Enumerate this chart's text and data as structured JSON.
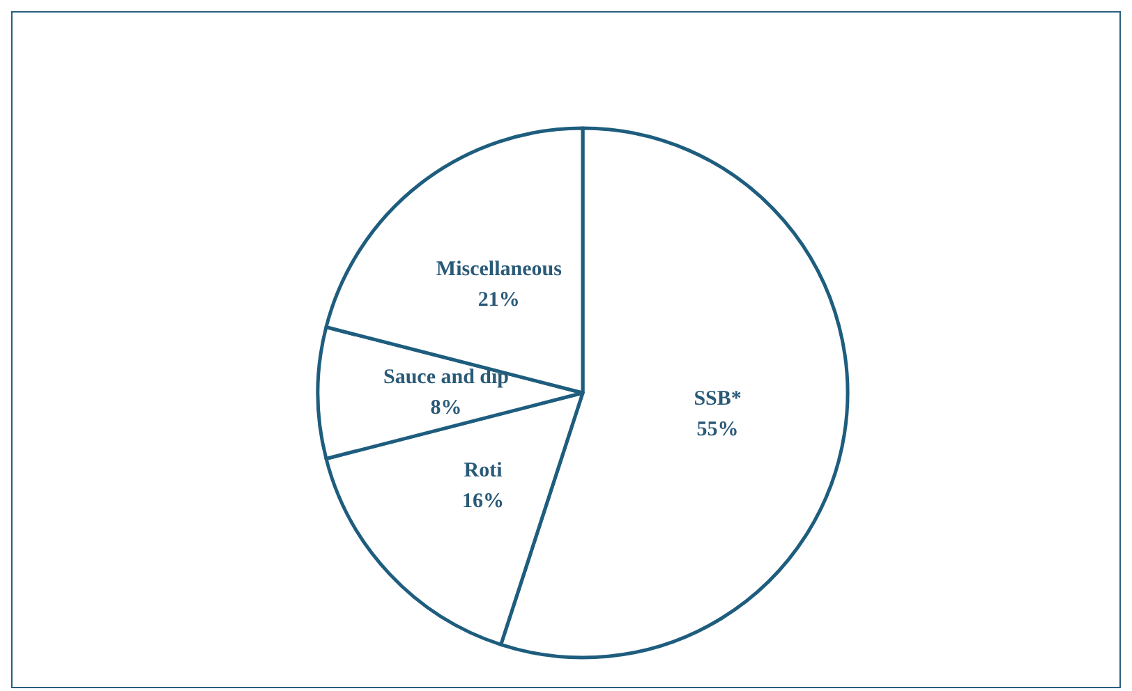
{
  "chart_data": {
    "type": "pie",
    "categories": [
      "SSB*",
      "Roti",
      "Sauce and dip",
      "Miscellaneous"
    ],
    "values": [
      55,
      16,
      8,
      21
    ],
    "value_labels": [
      "55%",
      "16%",
      "8%",
      "21%"
    ],
    "colors": [
      "#ffffff",
      "#ffffff",
      "#ffffff",
      "#ffffff"
    ],
    "legend": false
  }
}
